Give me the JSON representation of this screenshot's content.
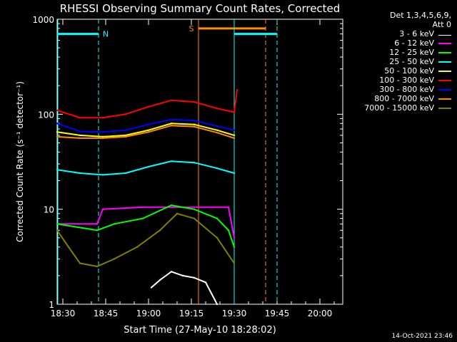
{
  "chart_data": {
    "type": "line",
    "title": "RHESSI Observing Summary Count Rates, Corrected",
    "xlabel": "Start Time (27-May-10 18:28:02)",
    "ylabel": "Corrected Count Rate (s⁻¹ detector⁻¹)",
    "y_scale": "log",
    "ylim": [
      1,
      1000
    ],
    "xlim_minutes_after_1828": [
      0,
      100
    ],
    "x_ticks": [
      "18:30",
      "18:45",
      "19:00",
      "19:15",
      "19:30",
      "19:45",
      "20:00"
    ],
    "y_ticks": [
      "1",
      "10",
      "100",
      "1000"
    ],
    "legend_header": [
      "Det 1,3,4,5,6,9,",
      "Att 0"
    ],
    "footer_date": "14-Oct-2021 23:46",
    "series": [
      {
        "name": "3 - 6 keV",
        "color": "#ffffff",
        "x": [
          33,
          36,
          40,
          44,
          48,
          52,
          56
        ],
        "values": [
          1.5,
          1.8,
          2.2,
          2.0,
          1.9,
          1.7,
          1.0
        ]
      },
      {
        "name": "6 - 12 keV",
        "color": "#ff00ff",
        "x": [
          0,
          14,
          16,
          30,
          44,
          60,
          62
        ],
        "values": [
          7,
          7,
          10,
          10.5,
          10.5,
          10.5,
          5
        ]
      },
      {
        "name": "12 - 25 keV",
        "color": "#00ff00",
        "x": [
          0,
          14,
          20,
          30,
          40,
          48,
          56,
          60,
          62
        ],
        "values": [
          7,
          6,
          7,
          8,
          11,
          10,
          8,
          6,
          4
        ]
      },
      {
        "name": "25 - 50 keV",
        "color": "#00ffff",
        "x": [
          0,
          8,
          16,
          24,
          32,
          40,
          48,
          56,
          62
        ],
        "values": [
          26,
          24,
          23,
          24,
          28,
          32,
          31,
          27,
          24
        ]
      },
      {
        "name": "50 - 100 keV",
        "color": "#ffff00",
        "x": [
          0,
          8,
          16,
          24,
          32,
          40,
          48,
          56,
          62
        ],
        "values": [
          65,
          60,
          58,
          60,
          68,
          80,
          78,
          68,
          60
        ]
      },
      {
        "name": "100 - 300 keV",
        "color": "#ff0000",
        "x": [
          0,
          8,
          16,
          24,
          32,
          40,
          48,
          56,
          62,
          63
        ],
        "values": [
          110,
          92,
          92,
          100,
          120,
          140,
          135,
          115,
          105,
          180
        ]
      },
      {
        "name": "300 - 800 keV",
        "color": "#0000ff",
        "x": [
          0,
          8,
          16,
          24,
          32,
          40,
          48,
          56,
          62
        ],
        "values": [
          80,
          66,
          65,
          68,
          78,
          88,
          86,
          75,
          68
        ]
      },
      {
        "name": "800 - 7000 keV",
        "color": "#ff8c00",
        "x": [
          0,
          8,
          16,
          24,
          32,
          40,
          48,
          56,
          62
        ],
        "values": [
          58,
          56,
          56,
          58,
          65,
          76,
          74,
          64,
          56
        ]
      },
      {
        "name": "7000 - 15000 keV",
        "color": "#808000",
        "x": [
          0,
          4,
          8,
          14,
          20,
          28,
          36,
          42,
          48,
          56,
          62
        ],
        "values": [
          6,
          4,
          2.7,
          2.5,
          3,
          4,
          6,
          9,
          8,
          5,
          2.7
        ]
      }
    ],
    "annotations": [
      {
        "label": "N",
        "color": "#00ffff",
        "bar_x": [
          0,
          14.5
        ],
        "bar_y": 700,
        "dashed_line_x": 14.5
      },
      {
        "label": "S",
        "color": "#ff8c00",
        "bar_x": [
          49.5,
          73
        ],
        "bar_y": 800,
        "solid_line_x": 49.5,
        "dashed_line_x": 73
      },
      {
        "label": "",
        "color": "#00ffff",
        "bar_x": [
          62,
          77
        ],
        "bar_y": 700,
        "solid_line_x": 62,
        "dashed_line_x": 77
      }
    ]
  }
}
